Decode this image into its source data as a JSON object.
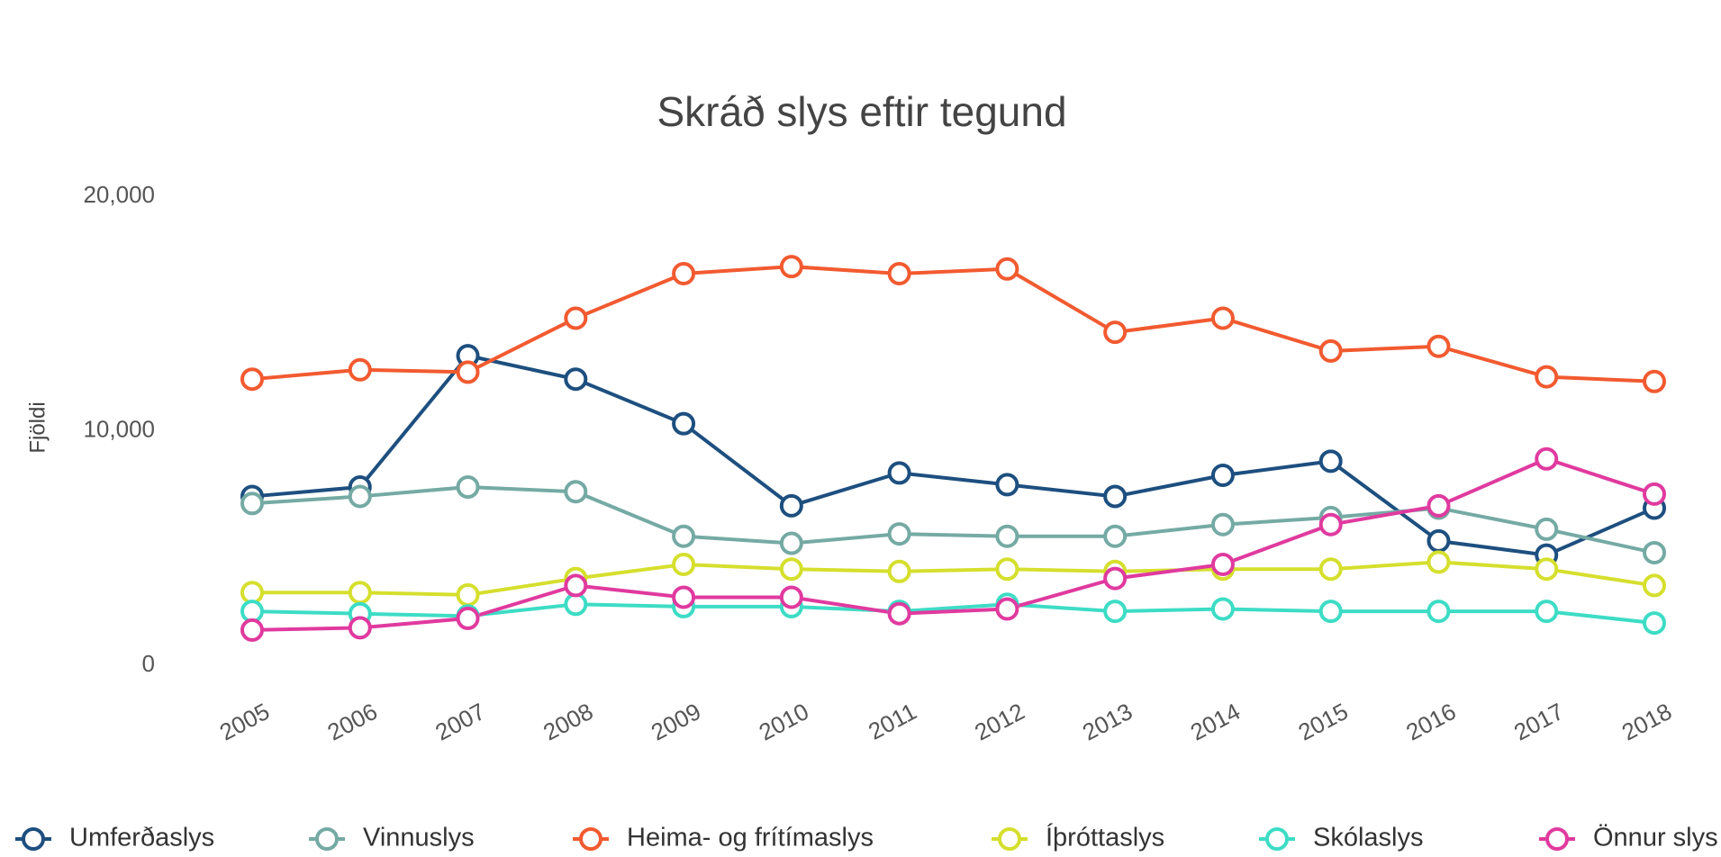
{
  "chart_data": {
    "type": "line",
    "title": "Skráð slys eftir tegund",
    "y_label": "Fjöldi",
    "x": [
      "2005",
      "2006",
      "2007",
      "2008",
      "2009",
      "2010",
      "2011",
      "2012",
      "2013",
      "2014",
      "2015",
      "2016",
      "2017",
      "2018"
    ],
    "ylim": [
      0,
      20000
    ],
    "yticks": [
      0,
      {
        "value": 10000,
        "label": "10,000"
      },
      {
        "value": 20000,
        "label": "20,000"
      }
    ],
    "grid": false,
    "legend": "bottom",
    "series": [
      {
        "name": "Umferðaslys",
        "color": "#1d4f7f",
        "values": [
          7200,
          7600,
          13200,
          12200,
          10300,
          6800,
          8200,
          7700,
          7200,
          8100,
          8700,
          5300,
          4700,
          6700
        ]
      },
      {
        "name": "Vinnuslys",
        "color": "#75aaa4",
        "values": [
          6900,
          7200,
          7600,
          7400,
          5500,
          5200,
          5600,
          5500,
          5500,
          6000,
          6300,
          6700,
          5800,
          4800
        ]
      },
      {
        "name": "Heima- og frítímaslys",
        "color": "#f25a30",
        "values": [
          12200,
          12600,
          12500,
          14800,
          16700,
          17000,
          16700,
          16900,
          14200,
          14800,
          13400,
          13600,
          12300,
          12100
        ]
      },
      {
        "name": "Íþróttaslys",
        "color": "#d5df2d",
        "values": [
          3100,
          3100,
          3000,
          3700,
          4300,
          4100,
          4000,
          4100,
          4000,
          4100,
          4100,
          4400,
          4100,
          3400
        ]
      },
      {
        "name": "Skólaslys",
        "color": "#3ddcc5",
        "values": [
          2300,
          2200,
          2100,
          2600,
          2500,
          2500,
          2300,
          2600,
          2300,
          2400,
          2300,
          2300,
          2300,
          1800
        ]
      },
      {
        "name": "Önnur slys",
        "color": "#e03a9f",
        "values": [
          1500,
          1600,
          2000,
          3400,
          2900,
          2900,
          2200,
          2400,
          3700,
          4300,
          6000,
          6800,
          8800,
          7300
        ]
      }
    ]
  }
}
